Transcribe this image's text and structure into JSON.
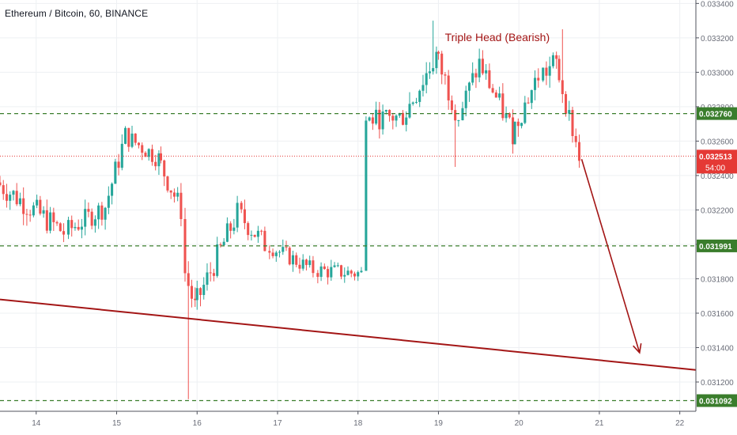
{
  "header": {
    "symbol_line": "Ethereum / Bitcoin, 60, BINANCE"
  },
  "colors": {
    "up": "#26a69a",
    "down": "#ef5350",
    "level": "#3a7d2c",
    "price": "#e53935",
    "annotation": "#a31515",
    "axis_text": "#6a6d78",
    "grid": "#eef0f3"
  },
  "chart_data": {
    "type": "candlestick",
    "title": "Ethereum / Bitcoin, 60, BINANCE",
    "yaxis": {
      "range": [
        0.03103,
        0.03342
      ],
      "ticks": [
        "0.031200",
        "0.031400",
        "0.031600",
        "0.031800",
        "0.032000",
        "0.032200",
        "0.032400",
        "0.032600",
        "0.032800",
        "0.033000",
        "0.033200",
        "0.033400"
      ]
    },
    "xaxis": {
      "range": [
        13.55,
        22.2
      ],
      "ticks": [
        {
          "x": 14,
          "label": "14"
        },
        {
          "x": 15,
          "label": "15"
        },
        {
          "x": 16,
          "label": "16"
        },
        {
          "x": 17,
          "label": "17"
        },
        {
          "x": 18,
          "label": "18"
        },
        {
          "x": 19,
          "label": "19"
        },
        {
          "x": 20,
          "label": "20"
        },
        {
          "x": 21,
          "label": "21"
        },
        {
          "x": 22,
          "label": "22"
        }
      ]
    },
    "levels": [
      {
        "value": 0.03276,
        "label": "0.032760"
      },
      {
        "value": 0.031991,
        "label": "0.031991"
      },
      {
        "value": 0.031092,
        "label": "0.031092"
      }
    ],
    "current_price": {
      "value": 0.032513,
      "label": "0.032513",
      "countdown": "54:00"
    },
    "trendline": {
      "from": [
        13.55,
        0.03168
      ],
      "to": [
        22.2,
        0.03127
      ]
    },
    "projection_arrow": {
      "from": [
        20.78,
        0.032495
      ],
      "to": [
        21.5,
        0.03137
      ]
    },
    "annotation": {
      "text": "Triple Head (Bearish)",
      "x": 19.08,
      "y": 0.03318
    },
    "segments": [
      {
        "x0": 13.55,
        "x1": 14.4,
        "start": 0.03236,
        "end": 0.03207,
        "noise": 7.5e-05
      },
      {
        "x0": 14.4,
        "x1": 14.9,
        "start": 0.03207,
        "end": 0.03222,
        "noise": 6.5e-05
      },
      {
        "x0": 14.9,
        "x1": 15.15,
        "start": 0.03222,
        "end": 0.03263,
        "noise": 7e-05
      },
      {
        "x0": 15.15,
        "x1": 15.55,
        "start": 0.03263,
        "end": 0.0325,
        "noise": 6e-05
      },
      {
        "x0": 15.55,
        "x1": 15.85,
        "start": 0.0325,
        "end": 0.0322,
        "noise": 7e-05
      },
      {
        "x0": 15.85,
        "x1": 16.0,
        "start": 0.0319,
        "end": 0.03163,
        "noise": 8e-05
      },
      {
        "x0": 16.0,
        "x1": 16.55,
        "start": 0.03163,
        "end": 0.03218,
        "noise": 7.5e-05
      },
      {
        "x0": 16.55,
        "x1": 16.9,
        "start": 0.03218,
        "end": 0.032,
        "noise": 7e-05
      },
      {
        "x0": 16.9,
        "x1": 17.5,
        "start": 0.032,
        "end": 0.03185,
        "noise": 5e-05
      },
      {
        "x0": 17.5,
        "x1": 18.1,
        "start": 0.03185,
        "end": 0.03183,
        "noise": 5e-05
      },
      {
        "x0": 18.1,
        "x1": 18.6,
        "start": 0.03272,
        "end": 0.03274,
        "noise": 6e-05
      },
      {
        "x0": 18.6,
        "x1": 19.0,
        "start": 0.03274,
        "end": 0.0331,
        "noise": 8e-05
      },
      {
        "x0": 19.0,
        "x1": 19.3,
        "start": 0.0331,
        "end": 0.03275,
        "noise": 8e-05
      },
      {
        "x0": 19.3,
        "x1": 19.55,
        "start": 0.03275,
        "end": 0.03305,
        "noise": 7.5e-05
      },
      {
        "x0": 19.55,
        "x1": 19.95,
        "start": 0.03305,
        "end": 0.03265,
        "noise": 7e-05
      },
      {
        "x0": 19.95,
        "x1": 20.3,
        "start": 0.03265,
        "end": 0.03298,
        "noise": 7e-05
      },
      {
        "x0": 20.3,
        "x1": 20.5,
        "start": 0.03298,
        "end": 0.03305,
        "noise": 8e-05
      },
      {
        "x0": 20.5,
        "x1": 20.8,
        "start": 0.03305,
        "end": 0.03251,
        "noise": 6e-05
      }
    ],
    "spikes": [
      {
        "x": 15.88,
        "low": 0.0311
      },
      {
        "x": 18.93,
        "high": 0.0333
      },
      {
        "x": 19.22,
        "low": 0.03245
      },
      {
        "x": 20.53,
        "high": 0.03325
      }
    ]
  }
}
